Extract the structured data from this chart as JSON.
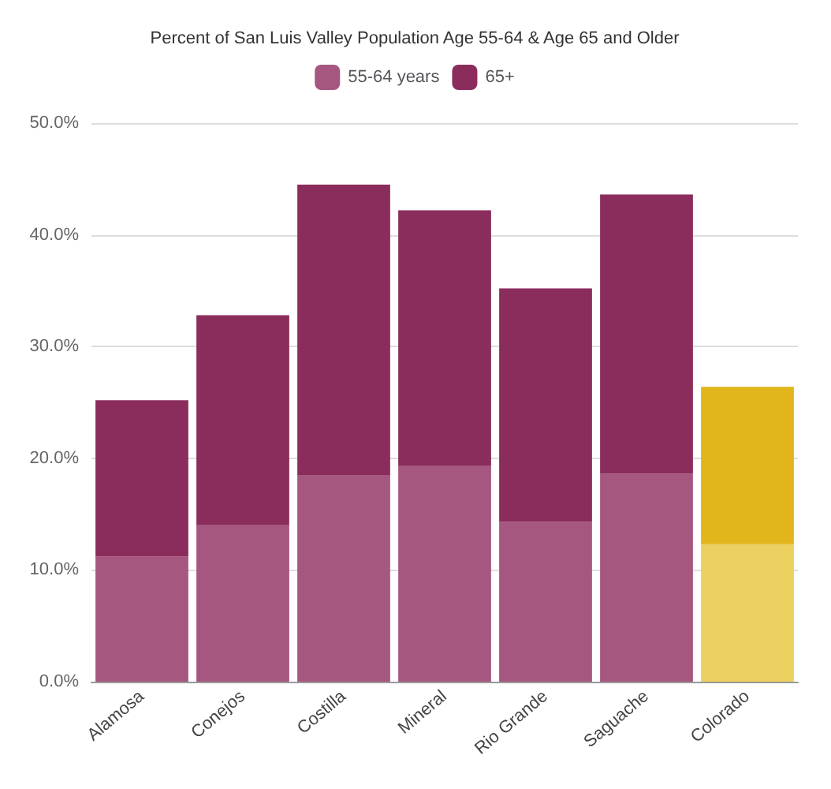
{
  "chart_data": {
    "type": "bar",
    "title": "Percent of San Luis Valley Population Age 55-64 & Age 65 and Older",
    "categories": [
      "Alamosa",
      "Conejos",
      "Costilla",
      "Mineral",
      "Rio Grande",
      "Saguache",
      "Colorado"
    ],
    "stacked": true,
    "series": [
      {
        "name": "55-64 years",
        "color": "#a5577f",
        "colors": [
          "#a5577f",
          "#a5577f",
          "#a5577f",
          "#a5577f",
          "#a5577f",
          "#a5577f",
          "#ecd060"
        ],
        "values": [
          11.2,
          14.0,
          18.5,
          19.3,
          14.3,
          18.6,
          12.3
        ]
      },
      {
        "name": "65+",
        "color": "#8b2d5c",
        "colors": [
          "#8b2d5c",
          "#8b2d5c",
          "#8b2d5c",
          "#8b2d5c",
          "#8b2d5c",
          "#8b2d5c",
          "#e2b51c"
        ],
        "values": [
          14.0,
          18.8,
          26.0,
          22.9,
          20.9,
          25.0,
          14.1
        ]
      }
    ],
    "ylim": [
      0,
      50
    ],
    "yticks": [
      {
        "value": 0,
        "label": "0.0%"
      },
      {
        "value": 10,
        "label": "10.0%"
      },
      {
        "value": 20,
        "label": "20.0%"
      },
      {
        "value": 30,
        "label": "30.0%"
      },
      {
        "value": 40,
        "label": "40.0%"
      },
      {
        "value": 50,
        "label": "50.0%"
      }
    ],
    "grid": "y",
    "legend": "top"
  }
}
